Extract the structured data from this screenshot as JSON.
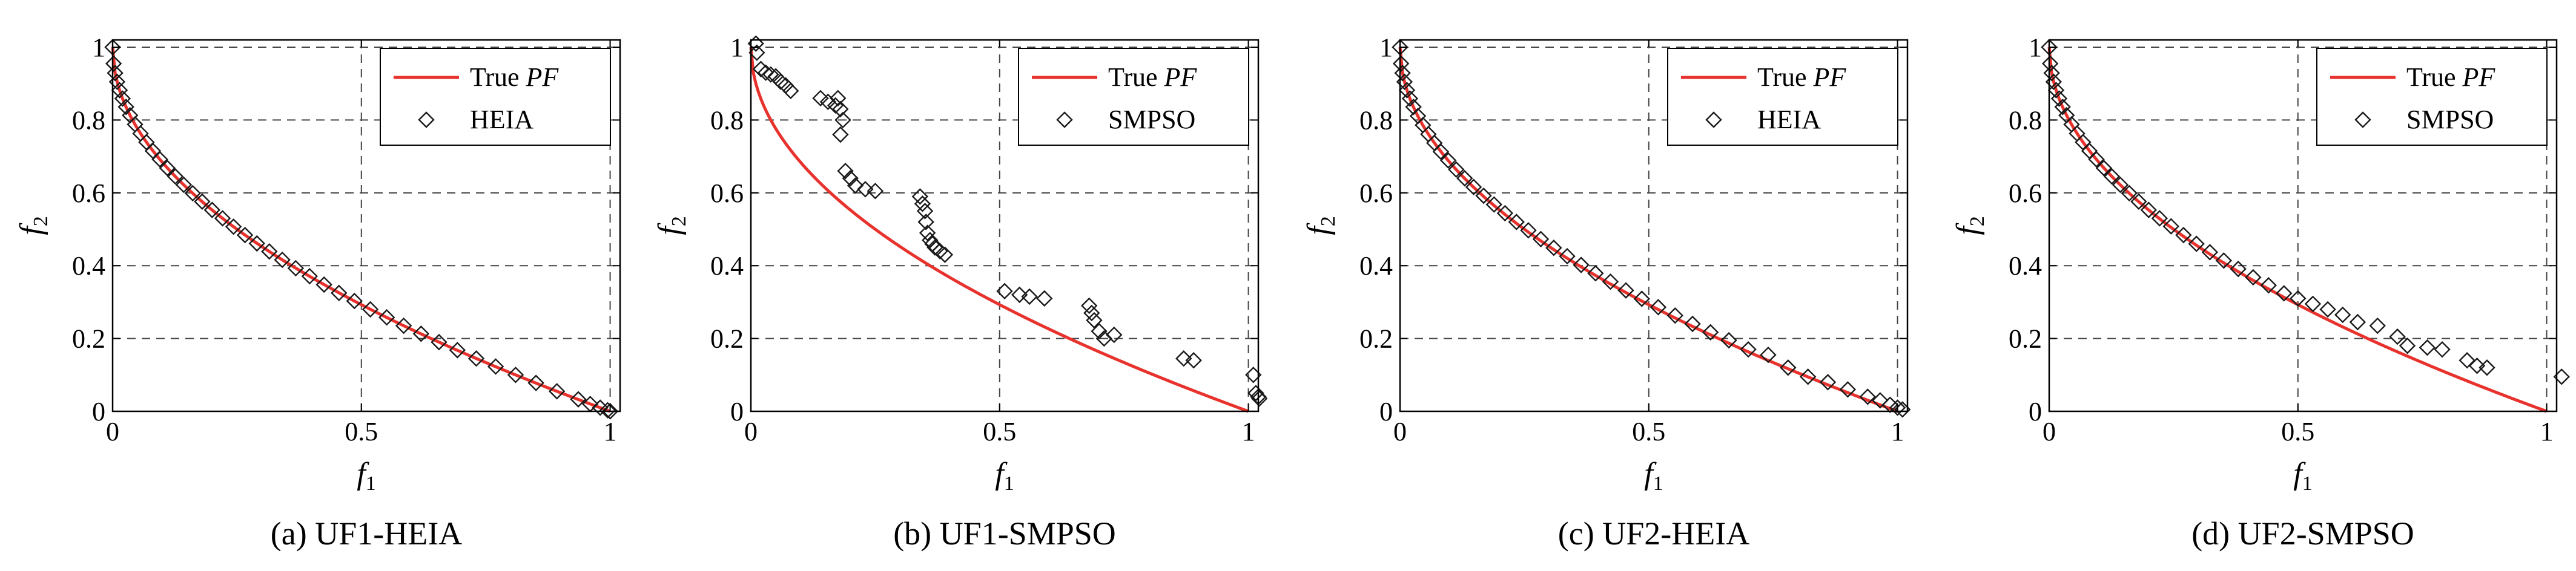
{
  "figure": {
    "colors": {
      "true_pf": "#e8322d",
      "marker": "#1a1a1a",
      "grid": "#444444"
    }
  },
  "chart_data": [
    {
      "type": "scatter",
      "caption": "(a) UF1-HEIA",
      "xlabel": "f1",
      "ylabel": "f2",
      "xlim": [
        0,
        1.02
      ],
      "ylim": [
        0,
        1.02
      ],
      "xticks": [
        "0",
        "0.5",
        "1"
      ],
      "yticks": [
        "0",
        "0.2",
        "0.4",
        "0.6",
        "0.8",
        "1"
      ],
      "grid": true,
      "legend_position": "top-right",
      "series": [
        {
          "name": "True PF",
          "kind": "line",
          "curve": "f2 = 1 - sqrt(f1)"
        },
        {
          "name": "HEIA",
          "kind": "scatter",
          "marker": "diamond",
          "x": [
            0.0,
            0.002,
            0.005,
            0.009,
            0.014,
            0.02,
            0.027,
            0.035,
            0.045,
            0.056,
            0.068,
            0.081,
            0.095,
            0.11,
            0.126,
            0.143,
            0.161,
            0.18,
            0.2,
            0.221,
            0.243,
            0.266,
            0.29,
            0.315,
            0.341,
            0.368,
            0.396,
            0.425,
            0.455,
            0.486,
            0.518,
            0.551,
            0.585,
            0.62,
            0.656,
            0.693,
            0.731,
            0.77,
            0.81,
            0.851,
            0.893,
            0.936,
            0.96,
            0.98,
            0.995,
            1.0
          ],
          "y": [
            1.0,
            0.955,
            0.929,
            0.905,
            0.882,
            0.859,
            0.836,
            0.813,
            0.788,
            0.763,
            0.739,
            0.715,
            0.692,
            0.668,
            0.645,
            0.622,
            0.599,
            0.576,
            0.553,
            0.53,
            0.507,
            0.484,
            0.461,
            0.439,
            0.416,
            0.393,
            0.371,
            0.348,
            0.325,
            0.303,
            0.28,
            0.258,
            0.235,
            0.213,
            0.19,
            0.168,
            0.145,
            0.123,
            0.1,
            0.078,
            0.055,
            0.033,
            0.02,
            0.01,
            0.003,
            0.0
          ]
        }
      ]
    },
    {
      "type": "scatter",
      "caption": "(b) UF1-SMPSO",
      "xlabel": "f1",
      "ylabel": "f2",
      "xlim": [
        0,
        1.02
      ],
      "ylim": [
        0,
        1.02
      ],
      "xticks": [
        "0",
        "0.5",
        "1"
      ],
      "yticks": [
        "0",
        "0.2",
        "0.4",
        "0.6",
        "0.8",
        "1"
      ],
      "grid": true,
      "legend_position": "top-right",
      "series": [
        {
          "name": "True PF",
          "kind": "line",
          "curve": "f2 = 1 - sqrt(f1)"
        },
        {
          "name": "SMPSO",
          "kind": "scatter",
          "marker": "diamond",
          "x": [
            0.01,
            0.012,
            0.02,
            0.03,
            0.04,
            0.05,
            0.06,
            0.07,
            0.08,
            0.14,
            0.155,
            0.17,
            0.175,
            0.18,
            0.185,
            0.18,
            0.19,
            0.2,
            0.21,
            0.23,
            0.25,
            0.34,
            0.345,
            0.35,
            0.352,
            0.355,
            0.36,
            0.365,
            0.37,
            0.38,
            0.39,
            0.51,
            0.54,
            0.56,
            0.59,
            0.68,
            0.685,
            0.69,
            0.7,
            0.71,
            0.73,
            0.87,
            0.89,
            1.01,
            1.015,
            1.02,
            1.022
          ],
          "y": [
            1.01,
            0.985,
            0.94,
            0.93,
            0.925,
            0.92,
            0.905,
            0.895,
            0.88,
            0.86,
            0.85,
            0.84,
            0.86,
            0.83,
            0.8,
            0.76,
            0.66,
            0.64,
            0.62,
            0.61,
            0.605,
            0.59,
            0.57,
            0.55,
            0.52,
            0.49,
            0.47,
            0.46,
            0.45,
            0.44,
            0.43,
            0.33,
            0.32,
            0.315,
            0.31,
            0.29,
            0.27,
            0.25,
            0.22,
            0.2,
            0.21,
            0.145,
            0.14,
            0.1,
            0.05,
            0.04,
            0.035
          ]
        }
      ]
    },
    {
      "type": "scatter",
      "caption": "(c) UF2-HEIA",
      "xlabel": "f1",
      "ylabel": "f2",
      "xlim": [
        0,
        1.02
      ],
      "ylim": [
        0,
        1.02
      ],
      "xticks": [
        "0",
        "0.5",
        "1"
      ],
      "yticks": [
        "0",
        "0.2",
        "0.4",
        "0.6",
        "0.8",
        "1"
      ],
      "grid": true,
      "legend_position": "top-right",
      "series": [
        {
          "name": "True PF",
          "kind": "line",
          "curve": "f2 = 1 - sqrt(f1)"
        },
        {
          "name": "HEIA",
          "kind": "scatter",
          "marker": "diamond",
          "x": [
            0.0,
            0.002,
            0.005,
            0.009,
            0.014,
            0.02,
            0.027,
            0.036,
            0.046,
            0.057,
            0.069,
            0.082,
            0.097,
            0.113,
            0.13,
            0.148,
            0.168,
            0.189,
            0.211,
            0.234,
            0.258,
            0.283,
            0.309,
            0.336,
            0.364,
            0.393,
            0.423,
            0.454,
            0.486,
            0.519,
            0.553,
            0.588,
            0.624,
            0.661,
            0.7,
            0.74,
            0.78,
            0.82,
            0.86,
            0.9,
            0.94,
            0.965,
            0.985,
            1.0,
            1.01
          ],
          "y": [
            1.0,
            0.955,
            0.929,
            0.905,
            0.882,
            0.859,
            0.836,
            0.811,
            0.786,
            0.761,
            0.737,
            0.713,
            0.689,
            0.664,
            0.64,
            0.616,
            0.592,
            0.568,
            0.544,
            0.52,
            0.497,
            0.473,
            0.449,
            0.426,
            0.402,
            0.379,
            0.356,
            0.332,
            0.309,
            0.286,
            0.263,
            0.24,
            0.217,
            0.195,
            0.17,
            0.155,
            0.12,
            0.095,
            0.08,
            0.06,
            0.04,
            0.03,
            0.018,
            0.01,
            0.005
          ]
        }
      ]
    },
    {
      "type": "scatter",
      "caption": "(d) UF2-SMPSO",
      "xlabel": "f1",
      "ylabel": "f2",
      "xlim": [
        0,
        1.02
      ],
      "ylim": [
        0,
        1.02
      ],
      "xticks": [
        "0",
        "0.5",
        "1"
      ],
      "yticks": [
        "0",
        "0.2",
        "0.4",
        "0.6",
        "0.8",
        "1"
      ],
      "grid": true,
      "legend_position": "top-right",
      "series": [
        {
          "name": "True PF",
          "kind": "line",
          "curve": "f2 = 1 - sqrt(f1)"
        },
        {
          "name": "SMPSO",
          "kind": "scatter",
          "marker": "diamond",
          "x": [
            0.0,
            0.002,
            0.005,
            0.009,
            0.014,
            0.02,
            0.027,
            0.035,
            0.045,
            0.056,
            0.068,
            0.081,
            0.095,
            0.11,
            0.126,
            0.143,
            0.161,
            0.18,
            0.2,
            0.222,
            0.245,
            0.27,
            0.296,
            0.323,
            0.351,
            0.38,
            0.41,
            0.441,
            0.472,
            0.5,
            0.53,
            0.56,
            0.59,
            0.62,
            0.66,
            0.7,
            0.72,
            0.76,
            0.79,
            0.84,
            0.86,
            0.88,
            1.03
          ],
          "y": [
            1.0,
            0.955,
            0.929,
            0.905,
            0.882,
            0.859,
            0.836,
            0.813,
            0.788,
            0.763,
            0.739,
            0.715,
            0.692,
            0.668,
            0.645,
            0.622,
            0.599,
            0.576,
            0.553,
            0.53,
            0.508,
            0.484,
            0.46,
            0.437,
            0.414,
            0.391,
            0.368,
            0.346,
            0.324,
            0.31,
            0.295,
            0.28,
            0.265,
            0.245,
            0.235,
            0.205,
            0.18,
            0.175,
            0.17,
            0.14,
            0.125,
            0.12,
            0.095
          ]
        }
      ]
    }
  ]
}
